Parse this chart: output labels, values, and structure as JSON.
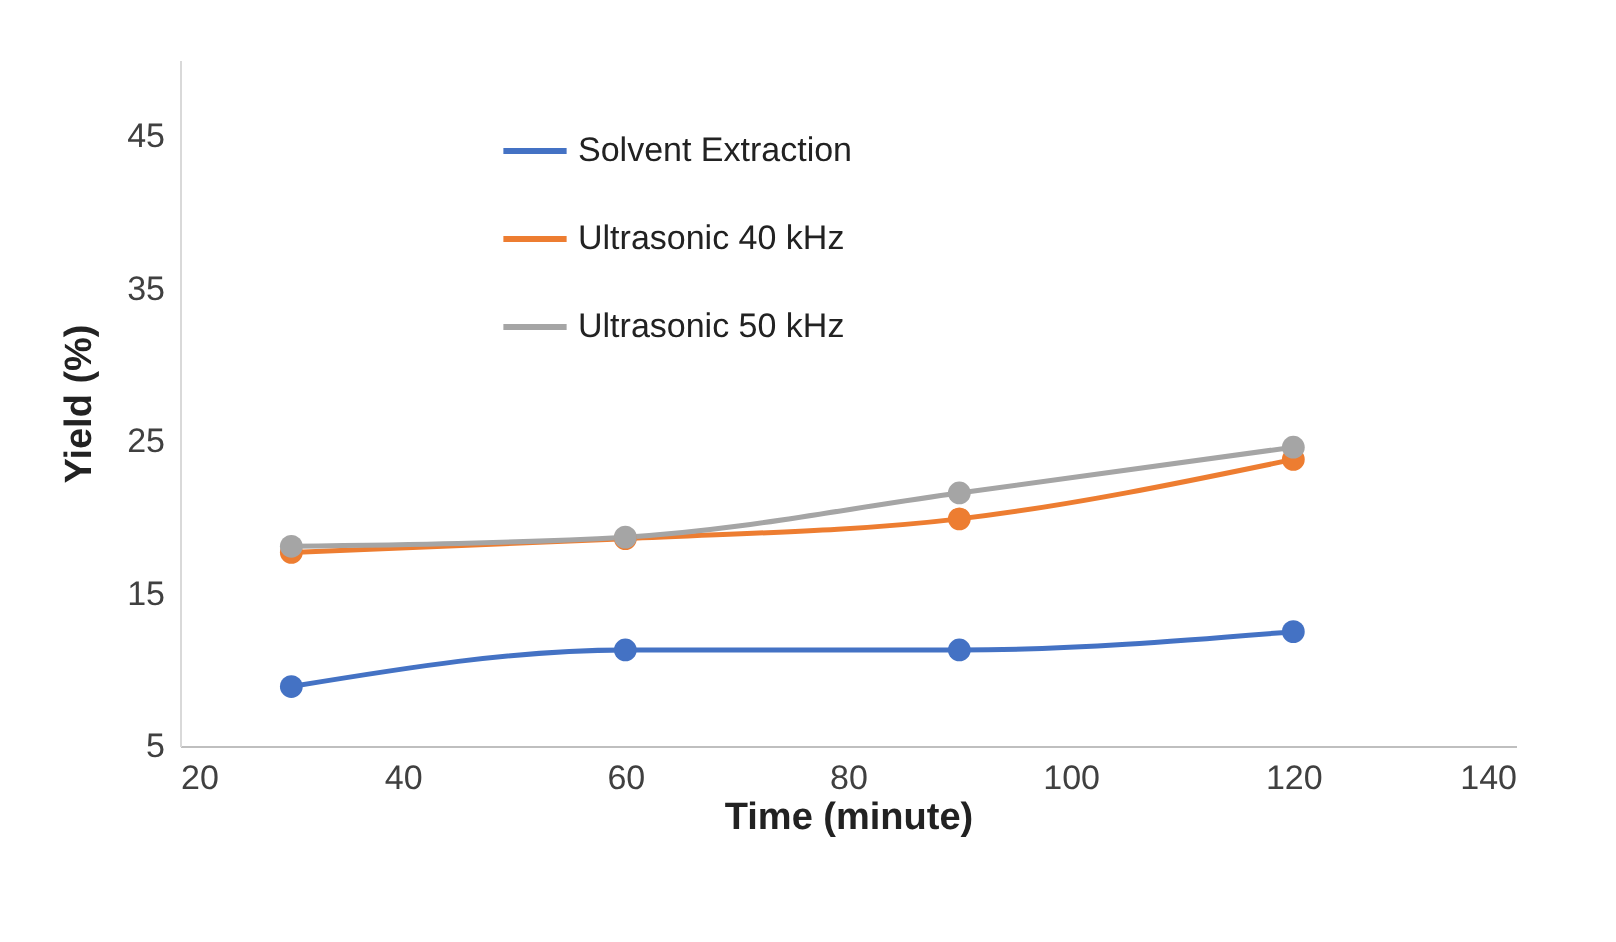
{
  "chart_data": {
    "type": "line",
    "xlabel": "Time (minute)",
    "ylabel": "Yield (%)",
    "x": [
      30,
      60,
      90,
      120
    ],
    "series": [
      {
        "name": "Solvent Extraction",
        "color": "#4472c4",
        "values": [
          8.9,
          11.3,
          11.3,
          12.5
        ]
      },
      {
        "name": "Ultrasonic 40 kHz",
        "color": "#ed7d31",
        "values": [
          17.7,
          18.6,
          19.9,
          23.8
        ]
      },
      {
        "name": "Ultrasonic 50 kHz",
        "color": "#a5a5a5",
        "values": [
          18.1,
          18.7,
          21.6,
          24.6
        ]
      }
    ],
    "xlim": [
      20,
      140
    ],
    "xticks": [
      20,
      40,
      60,
      80,
      100,
      120,
      140
    ],
    "ylim": [
      5,
      50
    ],
    "yticks": [
      5,
      15,
      25,
      35,
      45
    ],
    "grid": false,
    "legend": "top left",
    "marker": "circle",
    "line_style": "solid"
  }
}
